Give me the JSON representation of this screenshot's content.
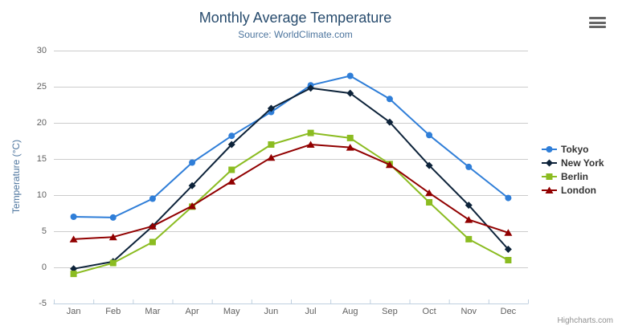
{
  "header": {
    "title": "Monthly Average Temperature",
    "subtitle": "Source: WorldClimate.com"
  },
  "credits": {
    "label": "Highcharts.com"
  },
  "colors": {
    "title": "#274b6d",
    "subtitle": "#4d759e",
    "axis_label": "#606060",
    "axis_title": "#4d759e",
    "grid_line": "#cccccc",
    "axis_line": "#c0d0e0",
    "legend_text": "#333333",
    "credits_text": "#909090"
  },
  "chart_data": {
    "type": "line",
    "title": "Monthly Average Temperature",
    "subtitle": "Source: WorldClimate.com",
    "categories": [
      "Jan",
      "Feb",
      "Mar",
      "Apr",
      "May",
      "Jun",
      "Jul",
      "Aug",
      "Sep",
      "Oct",
      "Nov",
      "Dec"
    ],
    "series": [
      {
        "name": "Tokyo",
        "color": "#2f7ed8",
        "marker": "circle",
        "values": [
          7.0,
          6.9,
          9.5,
          14.5,
          18.2,
          21.5,
          25.2,
          26.5,
          23.3,
          18.3,
          13.9,
          9.6
        ]
      },
      {
        "name": "New York",
        "color": "#0d233a",
        "marker": "diamond",
        "values": [
          -0.2,
          0.8,
          5.7,
          11.3,
          17.0,
          22.0,
          24.8,
          24.1,
          20.1,
          14.1,
          8.6,
          2.5
        ]
      },
      {
        "name": "Berlin",
        "color": "#8bbc21",
        "marker": "square",
        "values": [
          -0.9,
          0.6,
          3.5,
          8.4,
          13.5,
          17.0,
          18.6,
          17.9,
          14.3,
          9.0,
          3.9,
          1.0
        ]
      },
      {
        "name": "London",
        "color": "#910000",
        "marker": "triangle",
        "values": [
          3.9,
          4.2,
          5.7,
          8.5,
          11.9,
          15.2,
          17.0,
          16.6,
          14.2,
          10.3,
          6.6,
          4.8
        ]
      }
    ],
    "xlabel": "",
    "ylabel": "Temperature (°C)",
    "ylim": [
      -5,
      30
    ],
    "yticks": [
      -5,
      0,
      5,
      10,
      15,
      20,
      25,
      30
    ],
    "grid": true,
    "legend_position": "right"
  }
}
